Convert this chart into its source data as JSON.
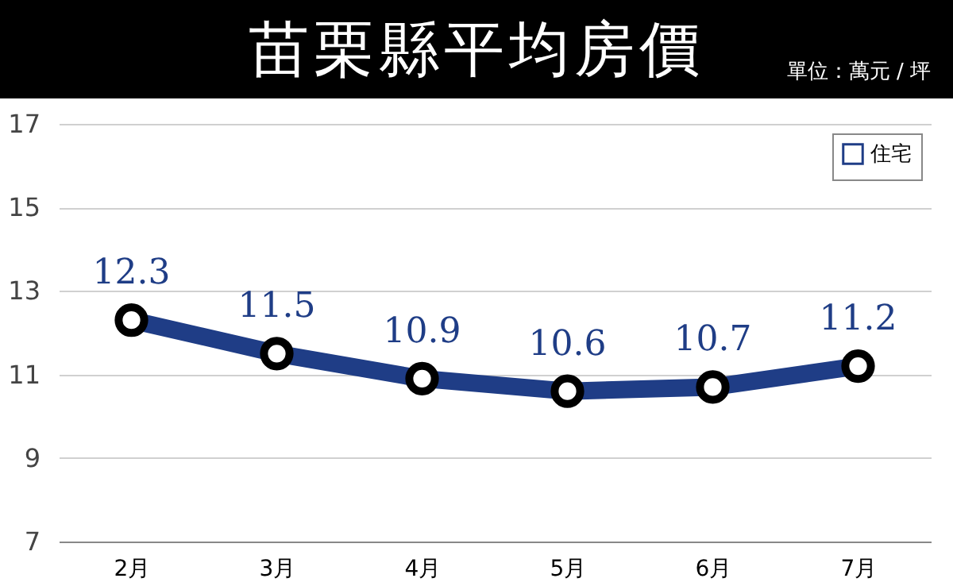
{
  "chart_data": {
    "type": "line",
    "title": "苗栗縣平均房價",
    "subtitle": "單位：萬元 / 坪",
    "categories": [
      "2月",
      "3月",
      "4月",
      "5月",
      "6月",
      "7月"
    ],
    "series": [
      {
        "name": "住宅",
        "color": "#1f3d86",
        "values": [
          12.3,
          11.5,
          10.9,
          10.6,
          10.7,
          11.2
        ]
      }
    ],
    "ylim": [
      7,
      17
    ],
    "yticks": [
      7,
      9,
      11,
      13,
      15,
      17
    ],
    "grid": "y",
    "legend": "top right",
    "marker": "circle",
    "data_labels": true
  }
}
